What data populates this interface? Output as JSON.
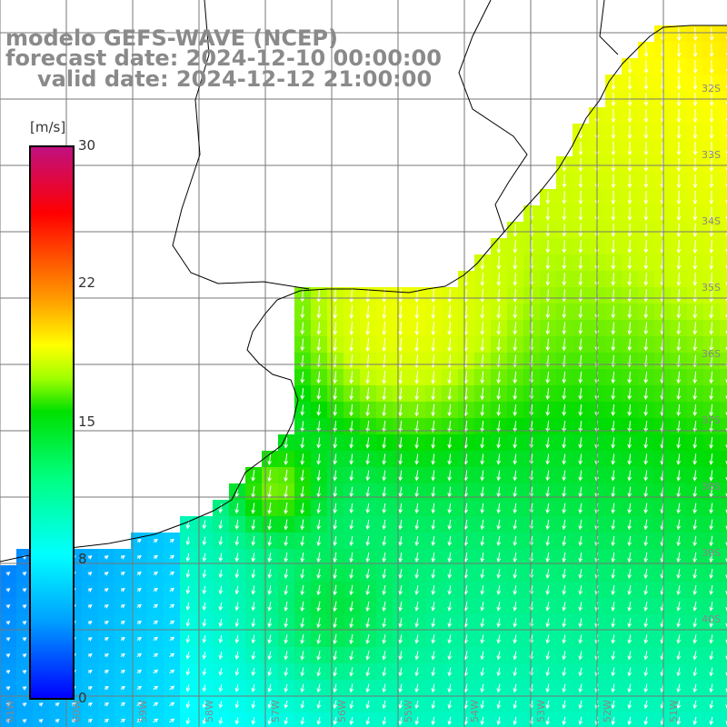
{
  "title": {
    "line1": "modelo GEFS-WAVE (NCEP)",
    "line2": "forecast date: 2024-12-10 00:00:00",
    "line3": "valid date: 2024-12-12 21:00:00"
  },
  "colorbar": {
    "unit": "[m/s]",
    "ticks": [
      "30",
      "22",
      "15",
      "8",
      "0"
    ],
    "colors": [
      "#0000ff",
      "#00a0ff",
      "#00ffff",
      "#00ff80",
      "#00e000",
      "#a0ff00",
      "#ffff00",
      "#ffa000",
      "#ff5000",
      "#ff0000",
      "#c01080"
    ]
  },
  "lon_labels": [
    "61W",
    "60W",
    "59W",
    "58W",
    "57W",
    "56W",
    "55W",
    "54W",
    "53W",
    "52W",
    "51W"
  ],
  "lat_labels": [
    "32S",
    "33S",
    "34S",
    "35S",
    "36S",
    "37S",
    "38S",
    "39S",
    "40S"
  ]
}
